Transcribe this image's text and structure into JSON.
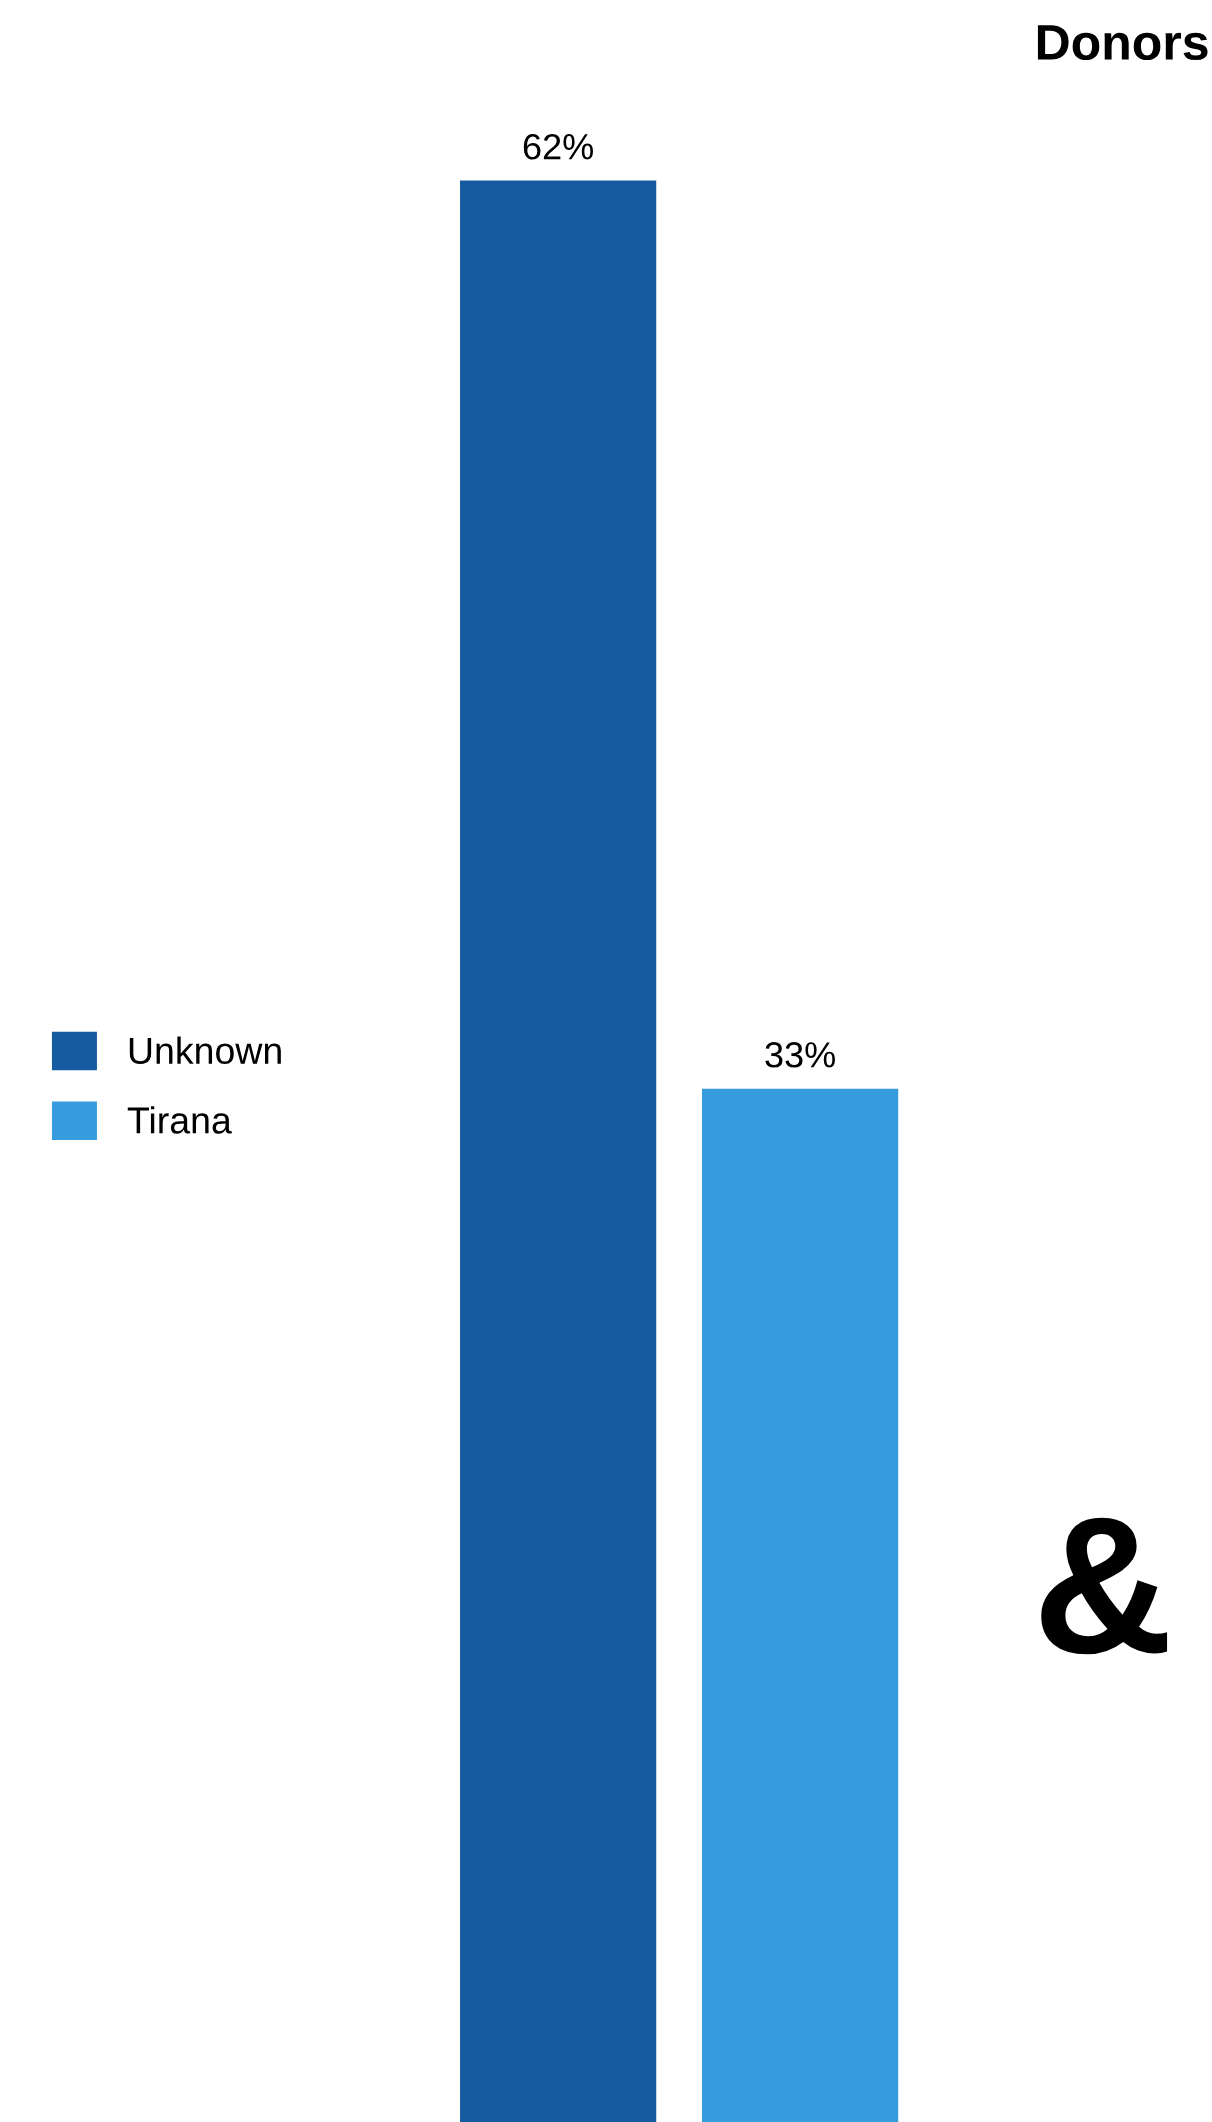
{
  "chart_data": {
    "type": "bar",
    "title": "Donors",
    "categories": [
      null
    ],
    "series": [
      {
        "name": "Unknown",
        "color": "#165aa0",
        "values": [
          62
        ],
        "value_labels": [
          "62%"
        ]
      },
      {
        "name": "Tirana",
        "color": "#369cdd",
        "values": [
          33
        ],
        "value_labels": [
          "33%"
        ]
      }
    ],
    "legend": "left",
    "annotations": [
      "&"
    ]
  }
}
